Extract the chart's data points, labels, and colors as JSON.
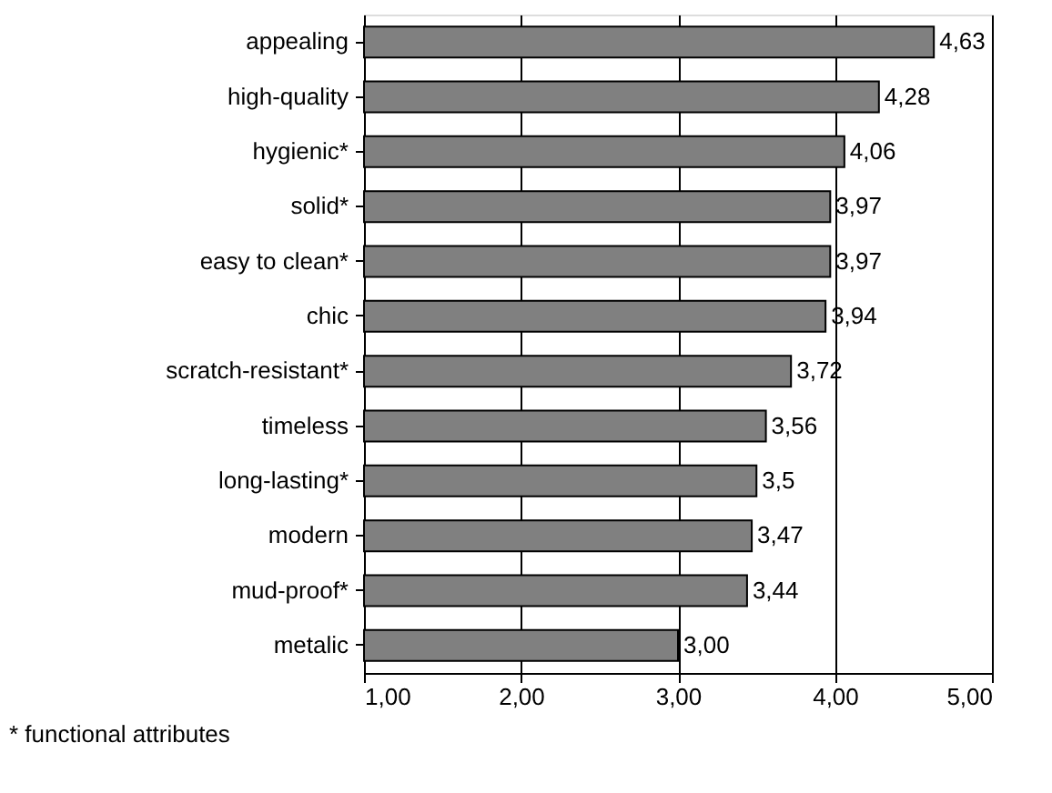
{
  "chart_data": {
    "type": "bar",
    "orientation": "horizontal",
    "categories": [
      "appealing",
      "high-quality",
      "hygienic*",
      "solid*",
      "easy to clean*",
      "chic",
      "scratch-resistant*",
      "timeless",
      "long-lasting*",
      "modern",
      "mud-proof*",
      "metalic"
    ],
    "values": [
      4.63,
      4.28,
      4.06,
      3.97,
      3.97,
      3.94,
      3.72,
      3.56,
      3.5,
      3.47,
      3.44,
      3.0
    ],
    "value_labels": [
      "4,63",
      "4,28",
      "4,06",
      "3,97",
      "3,97",
      "3,94",
      "3,72",
      "3,56",
      "3,5",
      "3,47",
      "3,44",
      "3,00"
    ],
    "color": "#808080",
    "xlim": [
      1,
      5
    ],
    "xticks": [
      {
        "value": 1,
        "label": "1,00"
      },
      {
        "value": 2,
        "label": "2,00"
      },
      {
        "value": 3,
        "label": "3,00"
      },
      {
        "value": 4,
        "label": "4,00"
      },
      {
        "value": 5,
        "label": "5,00"
      }
    ],
    "grid": "x",
    "annotations": [
      "* functional attributes"
    ]
  }
}
